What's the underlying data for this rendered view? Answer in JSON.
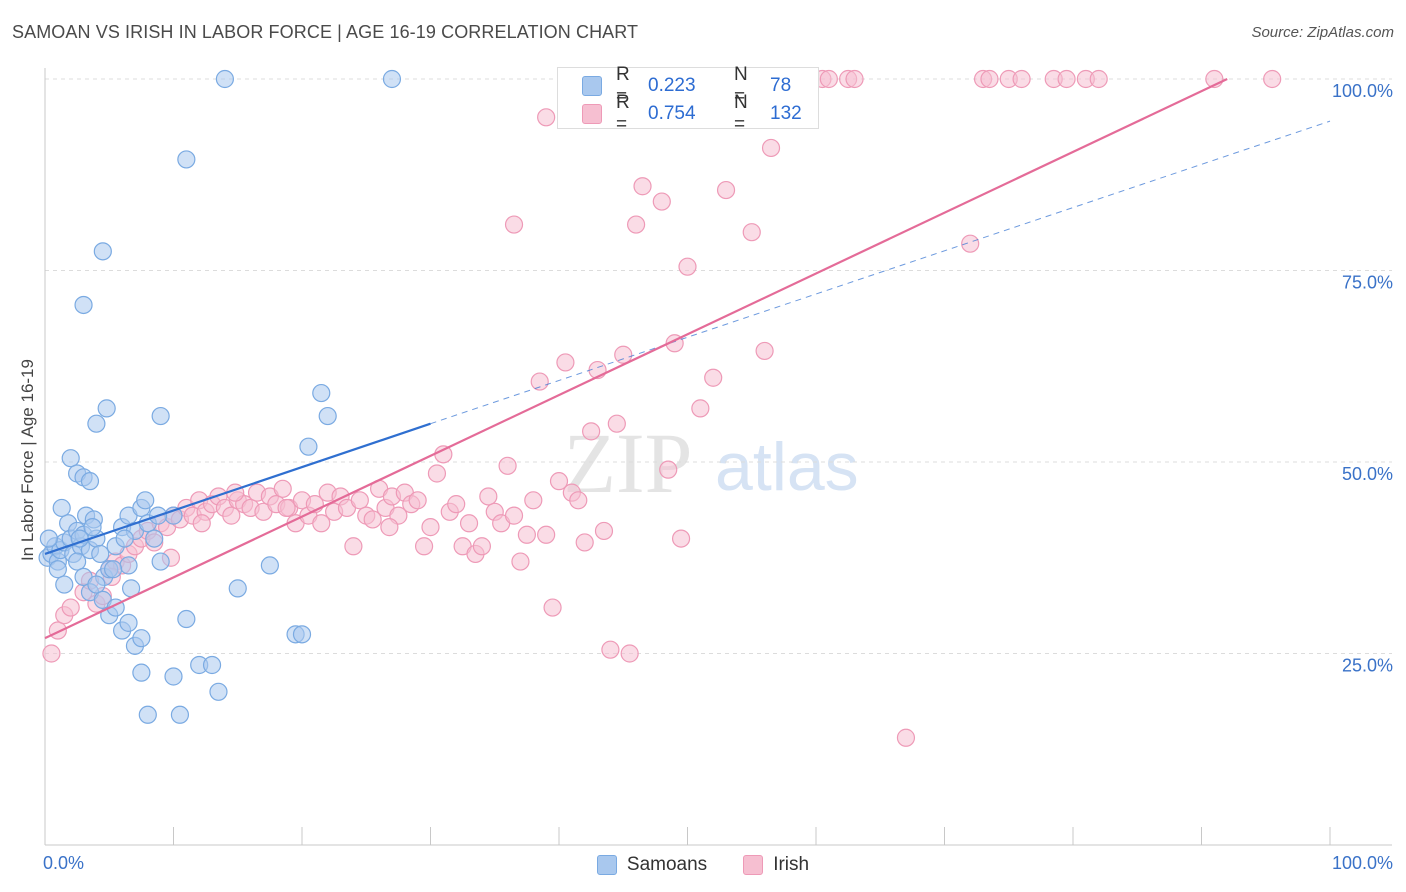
{
  "header": {
    "title": "SAMOAN VS IRISH IN LABOR FORCE | AGE 16-19 CORRELATION CHART",
    "source": "Source: ZipAtlas.com"
  },
  "legend_top": {
    "samoans": {
      "r_label": "R =",
      "r_value": "0.223",
      "n_label": "N =",
      "n_value": "78"
    },
    "irish": {
      "r_label": "R =",
      "r_value": "0.754",
      "n_label": "N =",
      "n_value": "132"
    }
  },
  "legend_bottom": {
    "samoans": "Samoans",
    "irish": "Irish"
  },
  "watermark": {
    "zip": "ZIP",
    "atlas": "atlas"
  },
  "colors": {
    "samoans_fill": "#a9c8ee",
    "samoans_stroke": "#7aaae2",
    "samoans_line": "#2f6fd0",
    "irish_fill": "#f6bfd1",
    "irish_stroke": "#ee9ab7",
    "irish_line": "#e46b98",
    "tick_label": "#3a72c8",
    "grid": "#dcdcdc"
  },
  "chart_data": {
    "type": "scatter",
    "title": "SAMOAN VS IRISH IN LABOR FORCE | AGE 16-19 CORRELATION CHART",
    "xlabel": "",
    "ylabel": "In Labor Force | Age 16-19",
    "xlim": [
      0,
      100
    ],
    "ylim": [
      0,
      100
    ],
    "x_tick_labels": [
      {
        "value": 0,
        "label": "0.0%"
      },
      {
        "value": 100,
        "label": "100.0%"
      }
    ],
    "y_tick_labels": [
      {
        "value": 25,
        "label": "25.0%"
      },
      {
        "value": 50,
        "label": "50.0%"
      },
      {
        "value": 75,
        "label": "75.0%"
      },
      {
        "value": 100,
        "label": "100.0%"
      }
    ],
    "grid": true,
    "series": [
      {
        "name": "Samoans",
        "R": 0.223,
        "N": 78,
        "trend": {
          "x": [
            0,
            30
          ],
          "y": [
            38.0,
            55.0
          ],
          "dashed_to": [
            100,
            94.5
          ]
        },
        "points": [
          [
            0.2,
            37.5
          ],
          [
            0.5,
            38.0
          ],
          [
            0.8,
            39.0
          ],
          [
            1.0,
            37.0
          ],
          [
            1.2,
            38.5
          ],
          [
            1.5,
            39.5
          ],
          [
            1.8,
            42.0
          ],
          [
            2.0,
            40.0
          ],
          [
            2.2,
            38.0
          ],
          [
            2.5,
            41.0
          ],
          [
            2.8,
            39.0
          ],
          [
            3.0,
            40.5
          ],
          [
            3.2,
            43.0
          ],
          [
            3.5,
            38.5
          ],
          [
            3.8,
            42.5
          ],
          [
            4.0,
            40.0
          ],
          [
            4.3,
            38.0
          ],
          [
            4.6,
            35.0
          ],
          [
            5.0,
            36.0
          ],
          [
            5.5,
            39.0
          ],
          [
            6.0,
            41.5
          ],
          [
            6.5,
            43.0
          ],
          [
            7.0,
            41.0
          ],
          [
            7.5,
            44.0
          ],
          [
            8.0,
            42.0
          ],
          [
            1.0,
            36.0
          ],
          [
            1.5,
            34.0
          ],
          [
            2.5,
            37.0
          ],
          [
            3.0,
            35.0
          ],
          [
            3.5,
            33.0
          ],
          [
            4.0,
            34.0
          ],
          [
            4.5,
            32.0
          ],
          [
            5.0,
            30.0
          ],
          [
            5.5,
            31.0
          ],
          [
            6.0,
            28.0
          ],
          [
            6.5,
            29.0
          ],
          [
            7.0,
            26.0
          ],
          [
            7.5,
            27.0
          ],
          [
            2.0,
            50.5
          ],
          [
            2.5,
            48.5
          ],
          [
            3.0,
            48.0
          ],
          [
            3.5,
            47.5
          ],
          [
            4.0,
            55.0
          ],
          [
            4.8,
            57.0
          ],
          [
            3.0,
            70.5
          ],
          [
            4.5,
            77.5
          ],
          [
            9.0,
            56.0
          ],
          [
            11.0,
            89.5
          ],
          [
            14.0,
            100
          ],
          [
            27.0,
            100
          ],
          [
            7.5,
            22.5
          ],
          [
            8.0,
            17.0
          ],
          [
            10.0,
            22.0
          ],
          [
            10.5,
            17.0
          ],
          [
            12.0,
            23.5
          ],
          [
            13.0,
            23.5
          ],
          [
            13.5,
            20.0
          ],
          [
            15.0,
            33.5
          ],
          [
            11.0,
            29.5
          ],
          [
            9.0,
            37.0
          ],
          [
            17.5,
            36.5
          ],
          [
            19.5,
            27.5
          ],
          [
            20.0,
            27.5
          ],
          [
            20.5,
            52.0
          ],
          [
            21.5,
            59.0
          ],
          [
            22.0,
            56.0
          ],
          [
            6.5,
            36.5
          ],
          [
            6.7,
            33.5
          ],
          [
            8.5,
            40.0
          ],
          [
            10.0,
            43.0
          ],
          [
            0.3,
            40.0
          ],
          [
            1.3,
            44.0
          ],
          [
            2.7,
            40.0
          ],
          [
            3.7,
            41.5
          ],
          [
            5.3,
            36.0
          ],
          [
            6.2,
            40.0
          ],
          [
            7.8,
            45.0
          ],
          [
            8.8,
            43.0
          ]
        ]
      },
      {
        "name": "Irish",
        "R": 0.754,
        "N": 132,
        "trend": {
          "x": [
            0,
            92
          ],
          "y": [
            27.0,
            100.0
          ]
        },
        "points": [
          [
            0.5,
            25.0
          ],
          [
            1.0,
            28.0
          ],
          [
            1.5,
            30.0
          ],
          [
            2.0,
            31.0
          ],
          [
            3.0,
            33.0
          ],
          [
            3.5,
            34.5
          ],
          [
            4.0,
            31.5
          ],
          [
            4.5,
            32.5
          ],
          [
            5.0,
            36.0
          ],
          [
            5.5,
            37.0
          ],
          [
            6.0,
            36.5
          ],
          [
            6.5,
            38.0
          ],
          [
            7.0,
            39.0
          ],
          [
            7.5,
            40.0
          ],
          [
            8.0,
            41.0
          ],
          [
            8.5,
            39.5
          ],
          [
            9.0,
            42.0
          ],
          [
            9.5,
            41.5
          ],
          [
            10.0,
            43.0
          ],
          [
            10.5,
            42.5
          ],
          [
            11.0,
            44.0
          ],
          [
            11.5,
            43.0
          ],
          [
            12.0,
            45.0
          ],
          [
            12.5,
            43.5
          ],
          [
            13.0,
            44.5
          ],
          [
            13.5,
            45.5
          ],
          [
            14.0,
            44.0
          ],
          [
            14.5,
            43.0
          ],
          [
            15.0,
            45.0
          ],
          [
            15.5,
            44.5
          ],
          [
            16.0,
            44.0
          ],
          [
            16.5,
            46.0
          ],
          [
            17.0,
            43.5
          ],
          [
            17.5,
            45.5
          ],
          [
            18.0,
            44.5
          ],
          [
            18.5,
            46.5
          ],
          [
            19.0,
            44.0
          ],
          [
            19.5,
            42.0
          ],
          [
            20.0,
            45.0
          ],
          [
            20.5,
            43.0
          ],
          [
            21.0,
            44.5
          ],
          [
            21.5,
            42.0
          ],
          [
            22.0,
            46.0
          ],
          [
            22.5,
            43.5
          ],
          [
            23.0,
            45.5
          ],
          [
            23.5,
            44.0
          ],
          [
            24.0,
            39.0
          ],
          [
            24.5,
            45.0
          ],
          [
            25.0,
            43.0
          ],
          [
            25.5,
            42.5
          ],
          [
            26.0,
            46.5
          ],
          [
            26.5,
            44.0
          ],
          [
            27.0,
            45.5
          ],
          [
            27.5,
            43.0
          ],
          [
            28.0,
            46.0
          ],
          [
            28.5,
            44.5
          ],
          [
            29.0,
            45.0
          ],
          [
            29.5,
            39.0
          ],
          [
            30.0,
            41.5
          ],
          [
            30.5,
            48.5
          ],
          [
            31.0,
            51.0
          ],
          [
            31.5,
            43.5
          ],
          [
            32.0,
            44.5
          ],
          [
            32.5,
            39.0
          ],
          [
            33.0,
            42.0
          ],
          [
            33.5,
            38.0
          ],
          [
            34.0,
            39.0
          ],
          [
            34.5,
            45.5
          ],
          [
            35.0,
            43.5
          ],
          [
            35.5,
            42.0
          ],
          [
            36.0,
            49.5
          ],
          [
            36.5,
            43.0
          ],
          [
            37.0,
            37.0
          ],
          [
            37.5,
            40.5
          ],
          [
            38.0,
            45.0
          ],
          [
            38.5,
            60.5
          ],
          [
            39.0,
            40.5
          ],
          [
            39.5,
            31.0
          ],
          [
            40.0,
            47.5
          ],
          [
            40.5,
            63.0
          ],
          [
            41.0,
            46.0
          ],
          [
            41.5,
            45.0
          ],
          [
            42.0,
            39.5
          ],
          [
            42.5,
            54.0
          ],
          [
            43.0,
            62.0
          ],
          [
            43.5,
            41.0
          ],
          [
            44.0,
            25.5
          ],
          [
            44.5,
            55.0
          ],
          [
            45.0,
            64.0
          ],
          [
            45.5,
            25.0
          ],
          [
            46.0,
            81.0
          ],
          [
            46.5,
            86.0
          ],
          [
            47.5,
            100
          ],
          [
            48.0,
            84.0
          ],
          [
            48.5,
            49.0
          ],
          [
            49.0,
            65.5
          ],
          [
            49.5,
            40.0
          ],
          [
            50.0,
            75.5
          ],
          [
            51.0,
            57.0
          ],
          [
            51.5,
            100
          ],
          [
            52.0,
            61.0
          ],
          [
            53.0,
            85.5
          ],
          [
            55.0,
            80.0
          ],
          [
            56.0,
            64.5
          ],
          [
            56.5,
            91.0
          ],
          [
            57.5,
            100
          ],
          [
            58.0,
            100
          ],
          [
            59.0,
            100
          ],
          [
            60.5,
            100
          ],
          [
            61.0,
            100
          ],
          [
            62.5,
            100
          ],
          [
            63.0,
            100
          ],
          [
            67.0,
            14.0
          ],
          [
            72.0,
            78.5
          ],
          [
            73.0,
            100
          ],
          [
            73.5,
            100
          ],
          [
            75.0,
            100
          ],
          [
            76.0,
            100
          ],
          [
            78.5,
            100
          ],
          [
            79.5,
            100
          ],
          [
            81.0,
            100
          ],
          [
            82.0,
            100
          ],
          [
            91.0,
            100
          ],
          [
            95.5,
            100
          ],
          [
            36.5,
            81.0
          ],
          [
            39.0,
            95.0
          ],
          [
            5.2,
            35.0
          ],
          [
            9.8,
            37.5
          ],
          [
            12.2,
            42.0
          ],
          [
            14.8,
            46.0
          ],
          [
            18.8,
            44.0
          ],
          [
            26.8,
            41.5
          ]
        ]
      }
    ]
  }
}
